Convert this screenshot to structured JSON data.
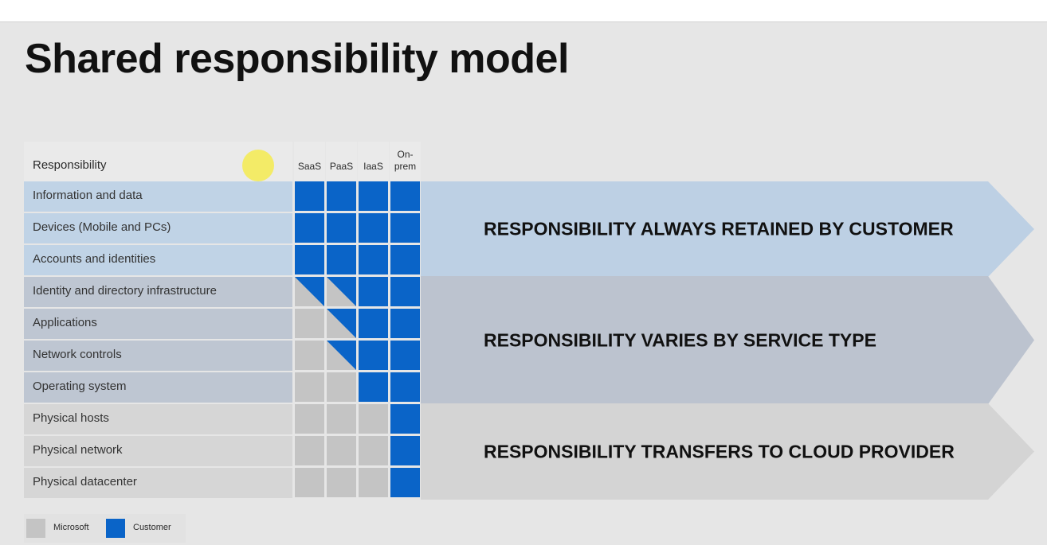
{
  "slide": {
    "title": "Shared responsibility model"
  },
  "table": {
    "header_label": "Responsibility",
    "columns": [
      "SaaS",
      "PaaS",
      "IaaS",
      "On-\nprem"
    ],
    "rows": [
      {
        "label": "Information and data",
        "cells": [
          "customer",
          "customer",
          "customer",
          "customer"
        ]
      },
      {
        "label": "Devices (Mobile and PCs)",
        "cells": [
          "customer",
          "customer",
          "customer",
          "customer"
        ]
      },
      {
        "label": "Accounts and identities",
        "cells": [
          "customer",
          "customer",
          "customer",
          "customer"
        ]
      },
      {
        "label": "Identity and directory infrastructure",
        "cells": [
          "shared",
          "shared",
          "customer",
          "customer"
        ]
      },
      {
        "label": "Applications",
        "cells": [
          "microsoft",
          "shared",
          "customer",
          "customer"
        ]
      },
      {
        "label": "Network controls",
        "cells": [
          "microsoft",
          "shared",
          "customer",
          "customer"
        ]
      },
      {
        "label": "Operating system",
        "cells": [
          "microsoft",
          "microsoft",
          "customer",
          "customer"
        ]
      },
      {
        "label": "Physical hosts",
        "cells": [
          "microsoft",
          "microsoft",
          "microsoft",
          "customer"
        ]
      },
      {
        "label": "Physical network",
        "cells": [
          "microsoft",
          "microsoft",
          "microsoft",
          "customer"
        ]
      },
      {
        "label": "Physical datacenter",
        "cells": [
          "microsoft",
          "microsoft",
          "microsoft",
          "customer"
        ]
      }
    ]
  },
  "bands": [
    {
      "text": "RESPONSIBILITY ALWAYS RETAINED BY CUSTOMER",
      "rows": 3,
      "color": "#bdd0e4",
      "label_color": "#c0d3e6"
    },
    {
      "text": "RESPONSIBILITY VARIES BY SERVICE TYPE",
      "rows": 4,
      "color": "#bcc3cf",
      "label_color": "#bec6d2"
    },
    {
      "text": "RESPONSIBILITY TRANSFERS TO CLOUD PROVIDER",
      "rows": 3,
      "color": "#d4d4d4",
      "label_color": "#d6d6d6"
    }
  ],
  "legend": {
    "microsoft_label": "Microsoft",
    "customer_label": "Customer"
  },
  "colors": {
    "customer": "#0a64c8",
    "microsoft": "#c4c4c4",
    "background": "#e6e6e6"
  },
  "icons": {
    "cursor_highlight": "yellow-dot"
  }
}
